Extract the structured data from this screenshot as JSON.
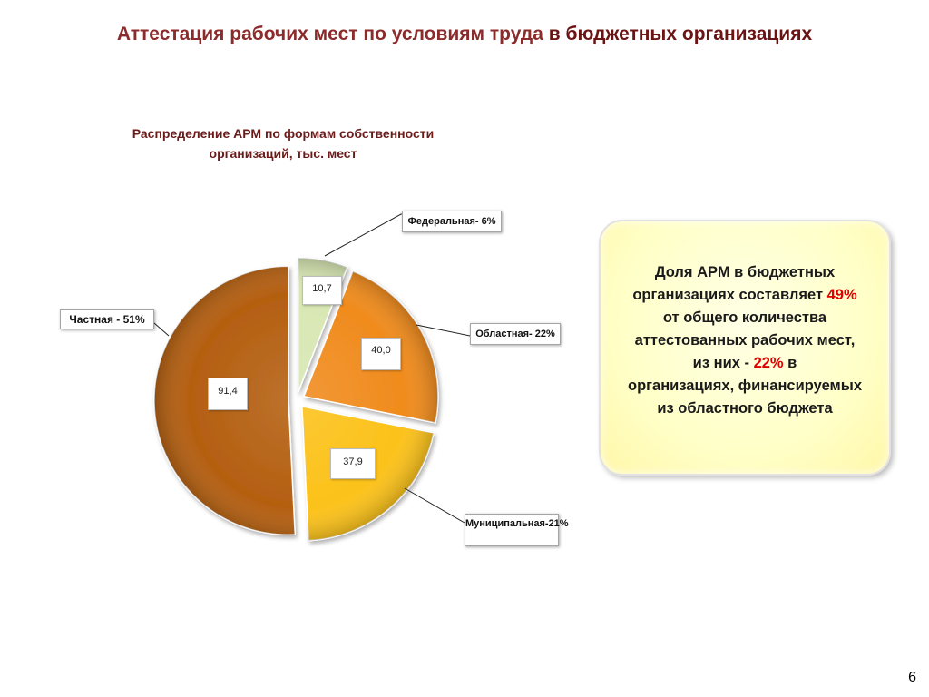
{
  "slide": {
    "title_part1": "Аттестация рабочих мест по условиям труда ",
    "title_part2": "в бюджетных организациях",
    "page_number": "6"
  },
  "chart_data": {
    "type": "pie",
    "title_line1": "Распределение АРМ по формам собственности",
    "title_line2": "организаций,  тыс. мест",
    "exploded": true,
    "slices": [
      {
        "legend": "Федеральная- 6%",
        "value": 10.7,
        "value_label": "10,7",
        "color": "#d8e7b3"
      },
      {
        "legend": "Областная- 22%",
        "value": 40.0,
        "value_label": "40,0",
        "color": "#f08b1d"
      },
      {
        "legend": "Муниципальная-21%",
        "value": 37.9,
        "value_label": "37,9",
        "color": "#fcc21a"
      },
      {
        "legend": "Частная - 51%",
        "value": 91.4,
        "value_label": "91,4",
        "color": "#b45f10"
      }
    ]
  },
  "callout": {
    "line1": "Доля АРМ в бюджетных",
    "line2_pre": "организациях  составляет ",
    "line2_pct": "49%",
    "line3": "от общего количества",
    "line4": "аттестованных рабочих мест,",
    "line5_pre": "из них  - ",
    "line5_pct": "22%",
    "line5_post": " в",
    "line6": "организациях,  финансируемых",
    "line7": "из областного бюджета"
  }
}
